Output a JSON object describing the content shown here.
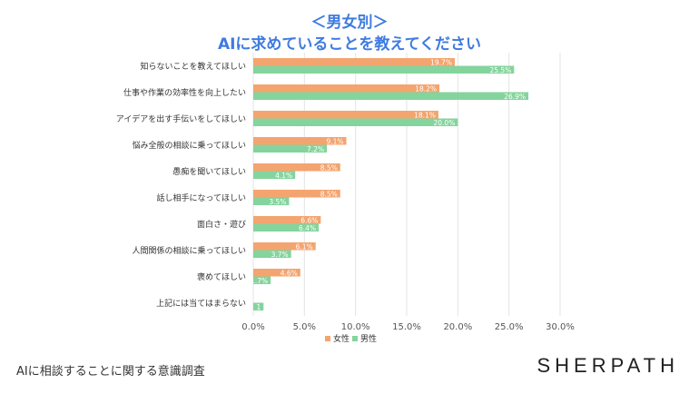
{
  "chart_data": {
    "type": "bar",
    "orientation": "horizontal",
    "title": "＜男女別＞",
    "subtitle": "AIに求めていることを教えてください",
    "categories": [
      "知らないことを教えてほしい",
      "仕事や作業の効率性を向上したい",
      "アイデアを出す手伝いをしてほしい",
      "悩み全般の相談に乗ってほしい",
      "愚痴を聞いてほしい",
      "話し相手になってほしい",
      "面白さ・遊び",
      "人間関係の相談に乗ってほしい",
      "褒めてほしい",
      "上記には当てはまらない"
    ],
    "series": [
      {
        "name": "女性",
        "color": "#f4a46f",
        "values": [
          19.7,
          18.2,
          18.1,
          9.1,
          8.5,
          8.5,
          6.6,
          6.1,
          4.6,
          0
        ],
        "labels": [
          "19.7%",
          "18.2%",
          "18.1%",
          "9.1%",
          "8.5%",
          "8.5%",
          "6.6%",
          "6.1%",
          "4.6%",
          "0"
        ]
      },
      {
        "name": "男性",
        "color": "#84d49d",
        "values": [
          25.5,
          26.9,
          20.0,
          7.2,
          4.1,
          3.5,
          6.4,
          3.7,
          1.7,
          1
        ],
        "labels": [
          "25.5%",
          "26.9%",
          "20.0%",
          "7.2%",
          "4.1%",
          "3.5%",
          "6.4%",
          "3.7%",
          "1.7%",
          "1"
        ]
      }
    ],
    "xlim": [
      0,
      30
    ],
    "xticks": [
      "0.0%",
      "5.0%",
      "10.0%",
      "15.0%",
      "20.0%",
      "25.0%",
      "30.0%"
    ],
    "grid": true,
    "legend_position": "bottom"
  },
  "footer": {
    "caption": "AIに相談することに関する意識調査",
    "brand": "SHERPATH"
  }
}
